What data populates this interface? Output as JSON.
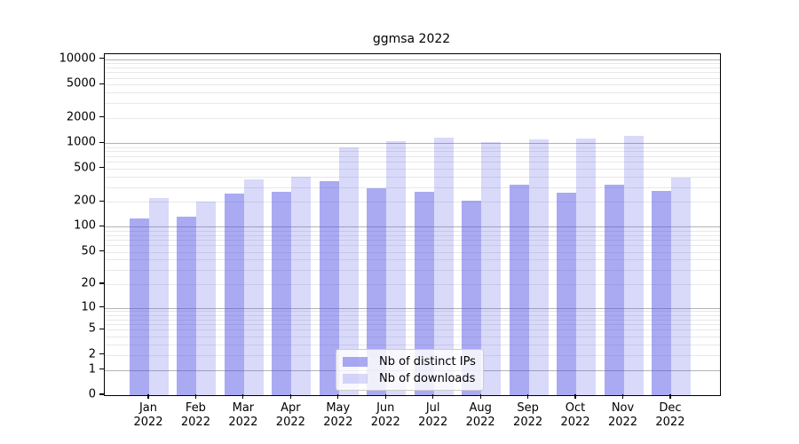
{
  "chart_data": {
    "type": "bar",
    "title": "ggmsa 2022",
    "year": "2022",
    "categories": [
      "Jan",
      "Feb",
      "Mar",
      "Apr",
      "May",
      "Jun",
      "Jul",
      "Aug",
      "Sep",
      "Oct",
      "Nov",
      "Dec"
    ],
    "series": [
      {
        "name": "Nb of distinct IPs",
        "color": "rgba(75,75,230,0.47)",
        "values": [
          125,
          133,
          248,
          264,
          355,
          290,
          260,
          205,
          320,
          257,
          320,
          268
        ]
      },
      {
        "name": "Nb of downloads",
        "color": "rgba(75,75,230,0.21)",
        "values": [
          222,
          200,
          370,
          395,
          900,
          1060,
          1160,
          1040,
          1120,
          1140,
          1230,
          385
        ]
      }
    ],
    "yscale": "log1p",
    "ylim": [
      0,
      11500
    ],
    "yticks": [
      0,
      1,
      2,
      5,
      10,
      20,
      50,
      100,
      200,
      500,
      1000,
      2000,
      5000,
      10000
    ],
    "ytick_labels": [
      "0",
      "1",
      "2",
      "5",
      "10",
      "20",
      "50",
      "100",
      "200",
      "500",
      "1000",
      "2000",
      "5000",
      "10000"
    ],
    "xlabel": "",
    "ylabel": "",
    "grid": {
      "major_color": "#b3b3b3",
      "minor_color": "#e8e8e8"
    },
    "legend": {
      "position": "inside-bottom-center"
    },
    "axis_color": "#000000",
    "background_color": "#ffffff"
  }
}
